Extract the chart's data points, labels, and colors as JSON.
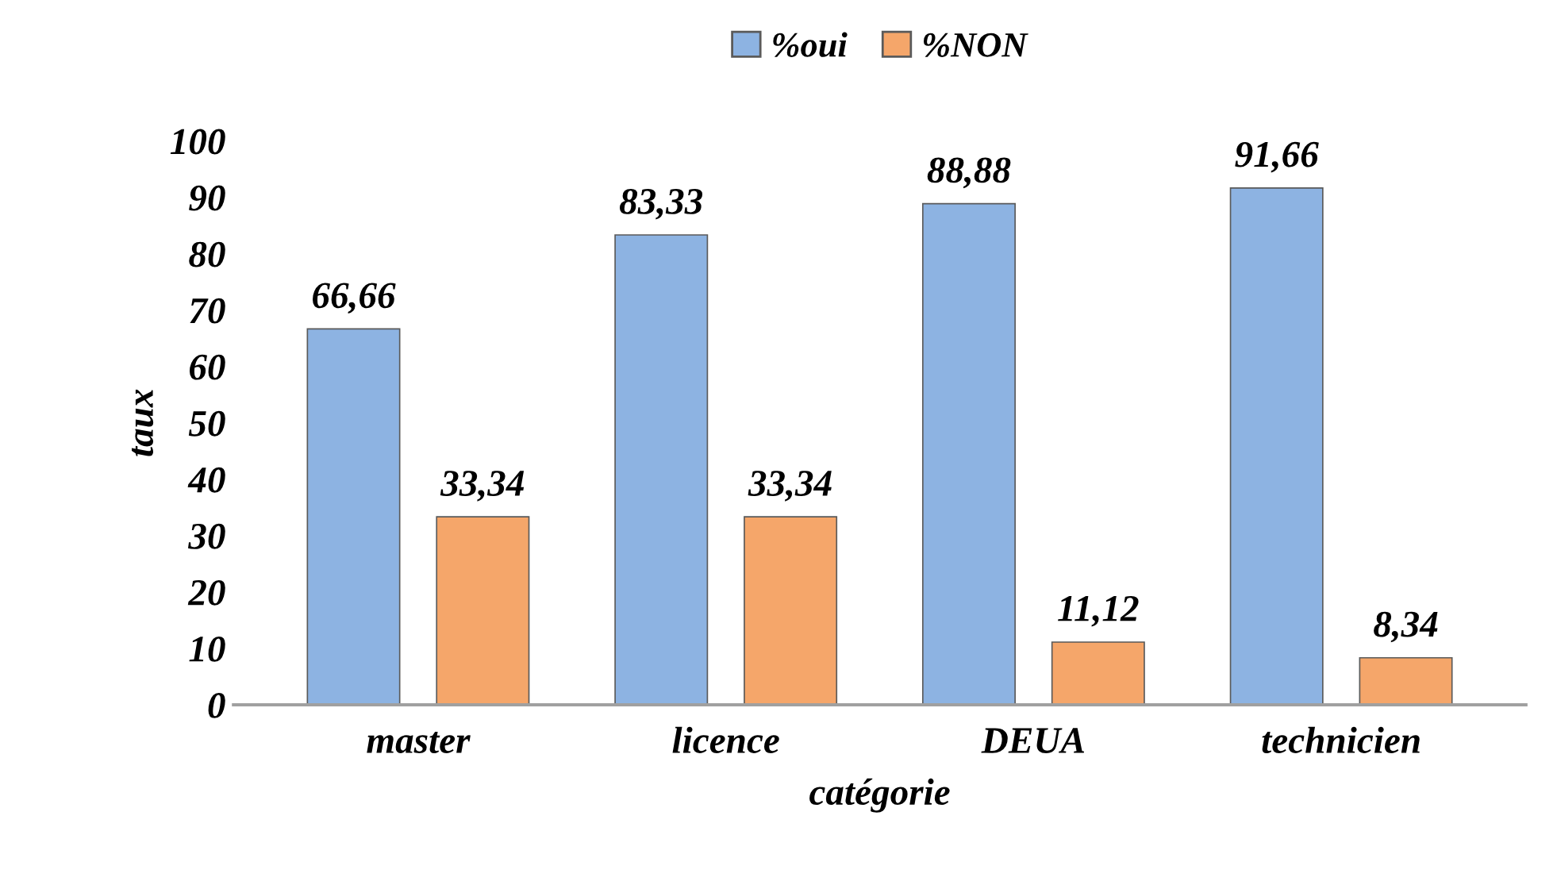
{
  "chart_data": {
    "type": "bar",
    "xlabel": "catégorie",
    "ylabel": "taux",
    "categories": [
      "master",
      "licence",
      "DEUA",
      "technicien"
    ],
    "series": [
      {
        "name": "%oui",
        "color": "#8db3e2",
        "values": [
          66.66,
          83.33,
          88.88,
          91.66
        ],
        "value_labels": [
          "66,66",
          "83,33",
          "88,88",
          "91,66"
        ]
      },
      {
        "name": "%NON",
        "color": "#f5a66a",
        "values": [
          33.34,
          33.34,
          11.12,
          8.34
        ],
        "value_labels": [
          "33,34",
          "33,34",
          "11,12",
          "8,34"
        ]
      }
    ],
    "ylim": [
      0,
      100
    ],
    "yticks": [
      0,
      10,
      20,
      30,
      40,
      50,
      60,
      70,
      80,
      90,
      100
    ],
    "grid": false,
    "legend": "top"
  }
}
